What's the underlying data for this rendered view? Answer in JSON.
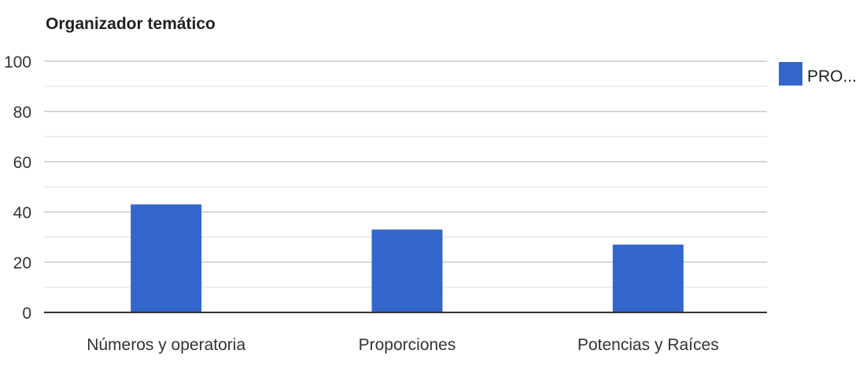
{
  "chart_data": {
    "type": "bar",
    "title": "Organizador temático",
    "xlabel": "",
    "ylabel": "",
    "categories": [
      "Números y operatoria",
      "Proporciones",
      "Potencias y Raíces"
    ],
    "series": [
      {
        "name": "PRO...",
        "color": "#3366cc",
        "values": [
          43,
          33,
          27
        ]
      }
    ],
    "ylim": [
      0,
      100
    ],
    "yticks": [
      0,
      20,
      40,
      60,
      80,
      100
    ],
    "minor_gridlines": true,
    "legend_position": "right"
  }
}
